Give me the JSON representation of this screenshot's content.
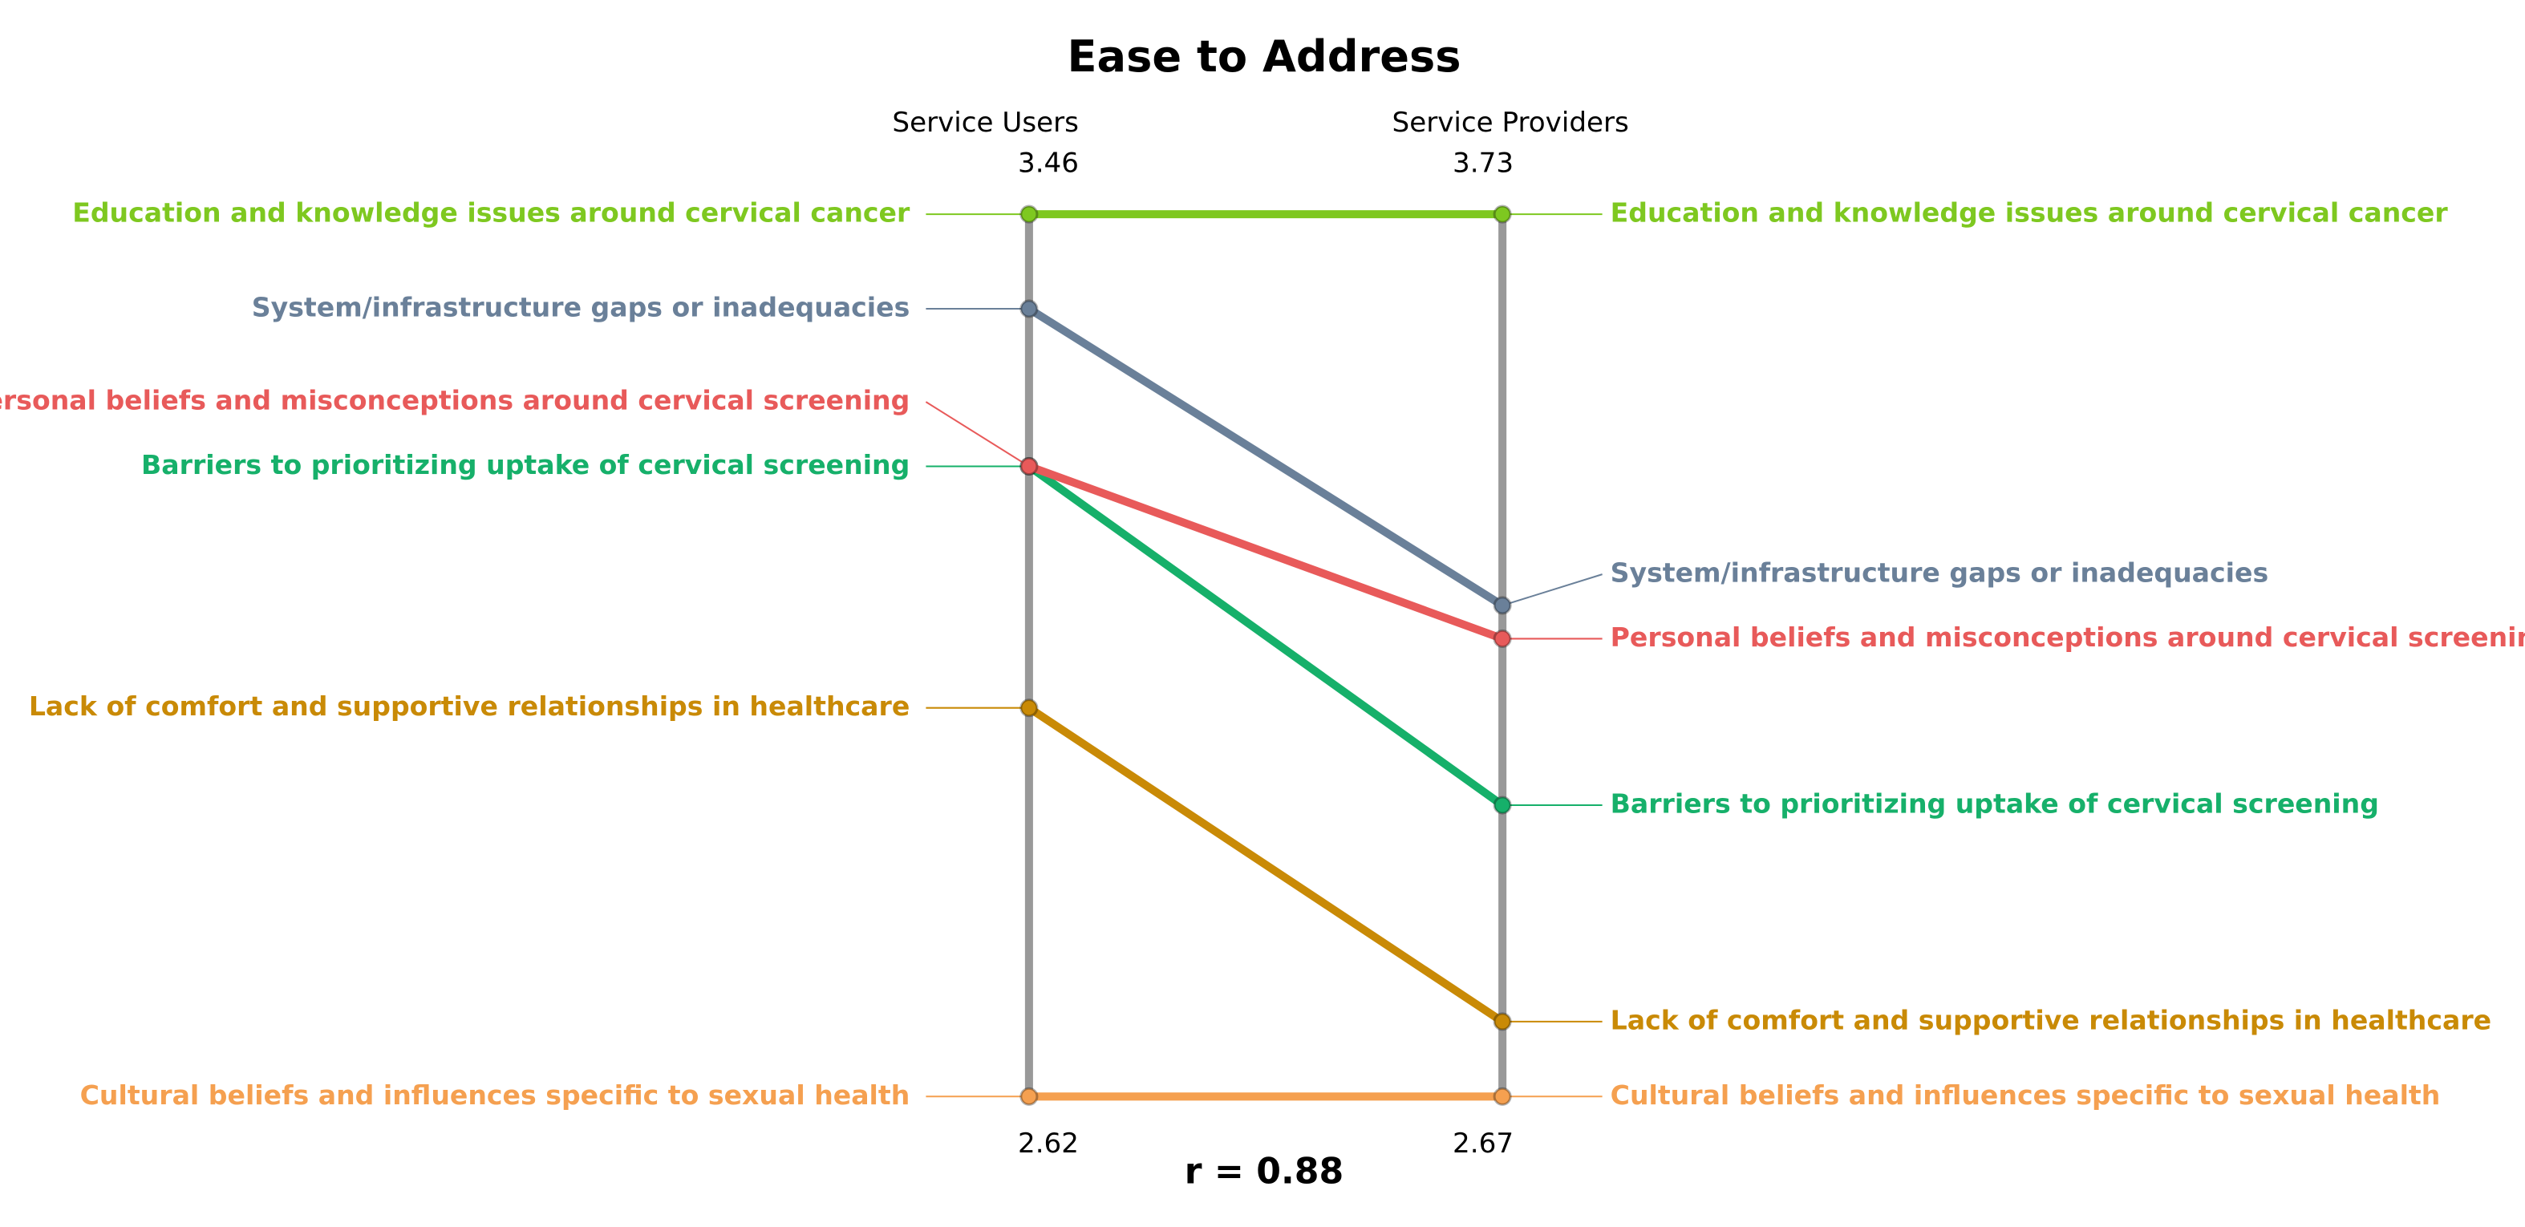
{
  "chart_data": {
    "type": "slope",
    "title": "Ease to Address",
    "columns": [
      "Service Users",
      "Service Providers"
    ],
    "ylim": [
      2.62,
      3.46
    ],
    "yticks": [
      2.62,
      3.46
    ],
    "y2lim": [
      2.67,
      3.73
    ],
    "y2ticks": [
      2.67,
      3.73
    ],
    "annotation": "r = 0.88",
    "series": [
      {
        "name": "Education and knowledge issues around cervical cancer",
        "color": "#7ec820",
        "values": [
          3.46,
          3.73
        ]
      },
      {
        "name": "System/infrastructure gaps or inadequacies",
        "color": "#6a8099",
        "values": [
          3.37,
          3.26
        ]
      },
      {
        "name": "Barriers to prioritizing uptake of cervical screening",
        "color": "#16b06a",
        "values": [
          3.22,
          3.02
        ]
      },
      {
        "name": "Personal beliefs and misconceptions around cervical screening",
        "color": "#e85a5a",
        "values": [
          3.22,
          3.22
        ]
      },
      {
        "name": "Lack of comfort and supportive relationships in healthcare",
        "color": "#c98a06",
        "values": [
          2.99,
          2.76
        ]
      },
      {
        "name": "Cultural beliefs and influences specific to sexual health",
        "color": "#f5a050",
        "values": [
          2.62,
          2.67
        ]
      }
    ]
  }
}
